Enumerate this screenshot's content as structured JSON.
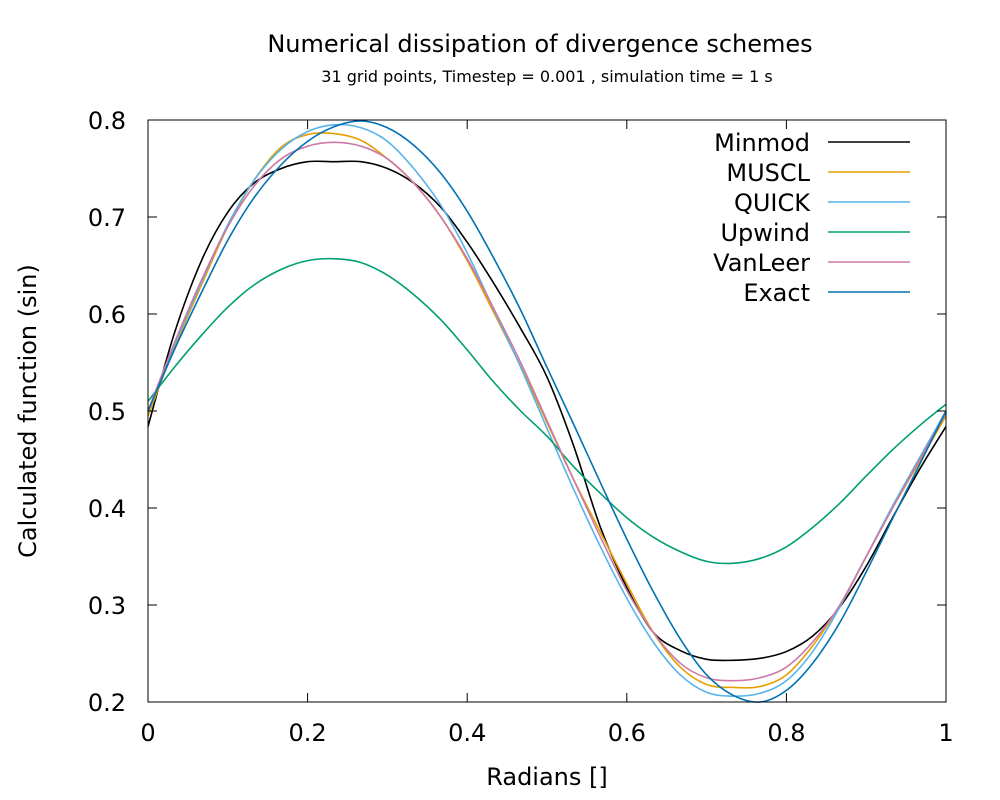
{
  "chart_data": {
    "type": "line",
    "title": "Numerical dissipation of divergence schemes",
    "subtitle": "31 grid points, Timestep = 0.001 , simulation time = 1 s",
    "xlabel": "Radians []",
    "ylabel": "Calculated function (sin)",
    "xlim": [
      0,
      1
    ],
    "ylim": [
      0.2,
      0.8
    ],
    "xticks": [
      0,
      0.2,
      0.4,
      0.6,
      0.8,
      1
    ],
    "xtick_labels": [
      "0",
      "0.2",
      "0.4",
      "0.6",
      "0.8",
      "1"
    ],
    "yticks": [
      0.2,
      0.3,
      0.4,
      0.5,
      0.6,
      0.7,
      0.8
    ],
    "ytick_labels": [
      "0.2",
      "0.3",
      "0.4",
      "0.5",
      "0.6",
      "0.7",
      "0.8"
    ],
    "grid": false,
    "legend_position": "top-right",
    "series": [
      {
        "name": "Minmod",
        "color": "#000000",
        "x": [
          0,
          0.033,
          0.067,
          0.1,
          0.133,
          0.167,
          0.2,
          0.233,
          0.267,
          0.3,
          0.333,
          0.367,
          0.4,
          0.433,
          0.467,
          0.5,
          0.533,
          0.567,
          0.6,
          0.633,
          0.667,
          0.7,
          0.733,
          0.767,
          0.8,
          0.833,
          0.867,
          0.9,
          0.933,
          0.967,
          1.0
        ],
        "y": [
          0.484,
          0.58,
          0.655,
          0.705,
          0.735,
          0.75,
          0.757,
          0.757,
          0.757,
          0.75,
          0.735,
          0.71,
          0.674,
          0.632,
          0.585,
          0.535,
          0.465,
          0.38,
          0.318,
          0.272,
          0.253,
          0.244,
          0.243,
          0.245,
          0.252,
          0.268,
          0.298,
          0.34,
          0.39,
          0.44,
          0.484
        ]
      },
      {
        "name": "MUSCL",
        "color": "#e69f00",
        "x": [
          0,
          0.033,
          0.067,
          0.1,
          0.133,
          0.167,
          0.2,
          0.233,
          0.267,
          0.3,
          0.333,
          0.367,
          0.4,
          0.433,
          0.467,
          0.5,
          0.533,
          0.567,
          0.6,
          0.633,
          0.667,
          0.7,
          0.733,
          0.767,
          0.8,
          0.833,
          0.867,
          0.9,
          0.933,
          0.967,
          1.0
        ],
        "y": [
          0.495,
          0.565,
          0.63,
          0.69,
          0.738,
          0.772,
          0.785,
          0.786,
          0.779,
          0.76,
          0.735,
          0.7,
          0.655,
          0.602,
          0.546,
          0.488,
          0.43,
          0.375,
          0.322,
          0.272,
          0.236,
          0.218,
          0.215,
          0.216,
          0.228,
          0.258,
          0.3,
          0.35,
          0.4,
          0.448,
          0.495
        ]
      },
      {
        "name": "QUICK",
        "color": "#56b4e9",
        "x": [
          0,
          0.033,
          0.067,
          0.1,
          0.133,
          0.167,
          0.2,
          0.233,
          0.267,
          0.3,
          0.333,
          0.367,
          0.4,
          0.433,
          0.467,
          0.5,
          0.533,
          0.567,
          0.6,
          0.633,
          0.667,
          0.7,
          0.733,
          0.767,
          0.8,
          0.833,
          0.867,
          0.9,
          0.933,
          0.967,
          1.0
        ],
        "y": [
          0.5,
          0.568,
          0.633,
          0.692,
          0.738,
          0.77,
          0.788,
          0.795,
          0.792,
          0.778,
          0.75,
          0.712,
          0.663,
          0.605,
          0.545,
          0.482,
          0.42,
          0.36,
          0.307,
          0.262,
          0.228,
          0.21,
          0.206,
          0.209,
          0.222,
          0.252,
          0.298,
          0.35,
          0.402,
          0.452,
          0.5
        ]
      },
      {
        "name": "Upwind",
        "color": "#009e73",
        "x": [
          0,
          0.033,
          0.067,
          0.1,
          0.133,
          0.167,
          0.2,
          0.233,
          0.267,
          0.3,
          0.333,
          0.367,
          0.4,
          0.433,
          0.467,
          0.5,
          0.533,
          0.567,
          0.6,
          0.633,
          0.667,
          0.7,
          0.733,
          0.767,
          0.8,
          0.833,
          0.867,
          0.9,
          0.933,
          0.967,
          1.0
        ],
        "y": [
          0.51,
          0.545,
          0.578,
          0.607,
          0.63,
          0.646,
          0.655,
          0.657,
          0.653,
          0.64,
          0.62,
          0.594,
          0.563,
          0.53,
          0.5,
          0.474,
          0.443,
          0.415,
          0.39,
          0.37,
          0.355,
          0.345,
          0.343,
          0.348,
          0.36,
          0.38,
          0.405,
          0.433,
          0.46,
          0.485,
          0.507
        ]
      },
      {
        "name": "VanLeer",
        "color": "#cc79a7",
        "x": [
          0,
          0.033,
          0.067,
          0.1,
          0.133,
          0.167,
          0.2,
          0.233,
          0.267,
          0.3,
          0.333,
          0.367,
          0.4,
          0.433,
          0.467,
          0.5,
          0.533,
          0.567,
          0.6,
          0.633,
          0.667,
          0.7,
          0.733,
          0.767,
          0.8,
          0.833,
          0.867,
          0.9,
          0.933,
          0.967,
          1.0
        ],
        "y": [
          0.5,
          0.57,
          0.635,
          0.69,
          0.732,
          0.76,
          0.773,
          0.777,
          0.773,
          0.76,
          0.735,
          0.7,
          0.657,
          0.606,
          0.55,
          0.49,
          0.43,
          0.37,
          0.315,
          0.272,
          0.24,
          0.225,
          0.222,
          0.225,
          0.236,
          0.262,
          0.3,
          0.35,
          0.4,
          0.45,
          0.498
        ]
      },
      {
        "name": "Exact",
        "color": "#0072b2",
        "x": [
          0,
          0.033,
          0.067,
          0.1,
          0.133,
          0.167,
          0.2,
          0.233,
          0.267,
          0.3,
          0.333,
          0.367,
          0.4,
          0.433,
          0.467,
          0.5,
          0.533,
          0.567,
          0.6,
          0.633,
          0.667,
          0.7,
          0.733,
          0.767,
          0.8,
          0.833,
          0.867,
          0.9,
          0.933,
          0.967,
          1.0
        ],
        "y": [
          0.5,
          0.563,
          0.622,
          0.676,
          0.72,
          0.754,
          0.778,
          0.793,
          0.799,
          0.792,
          0.774,
          0.745,
          0.706,
          0.658,
          0.604,
          0.545,
          0.487,
          0.426,
          0.368,
          0.314,
          0.265,
          0.228,
          0.207,
          0.2,
          0.212,
          0.24,
          0.282,
          0.334,
          0.389,
          0.445,
          0.5
        ]
      }
    ]
  }
}
